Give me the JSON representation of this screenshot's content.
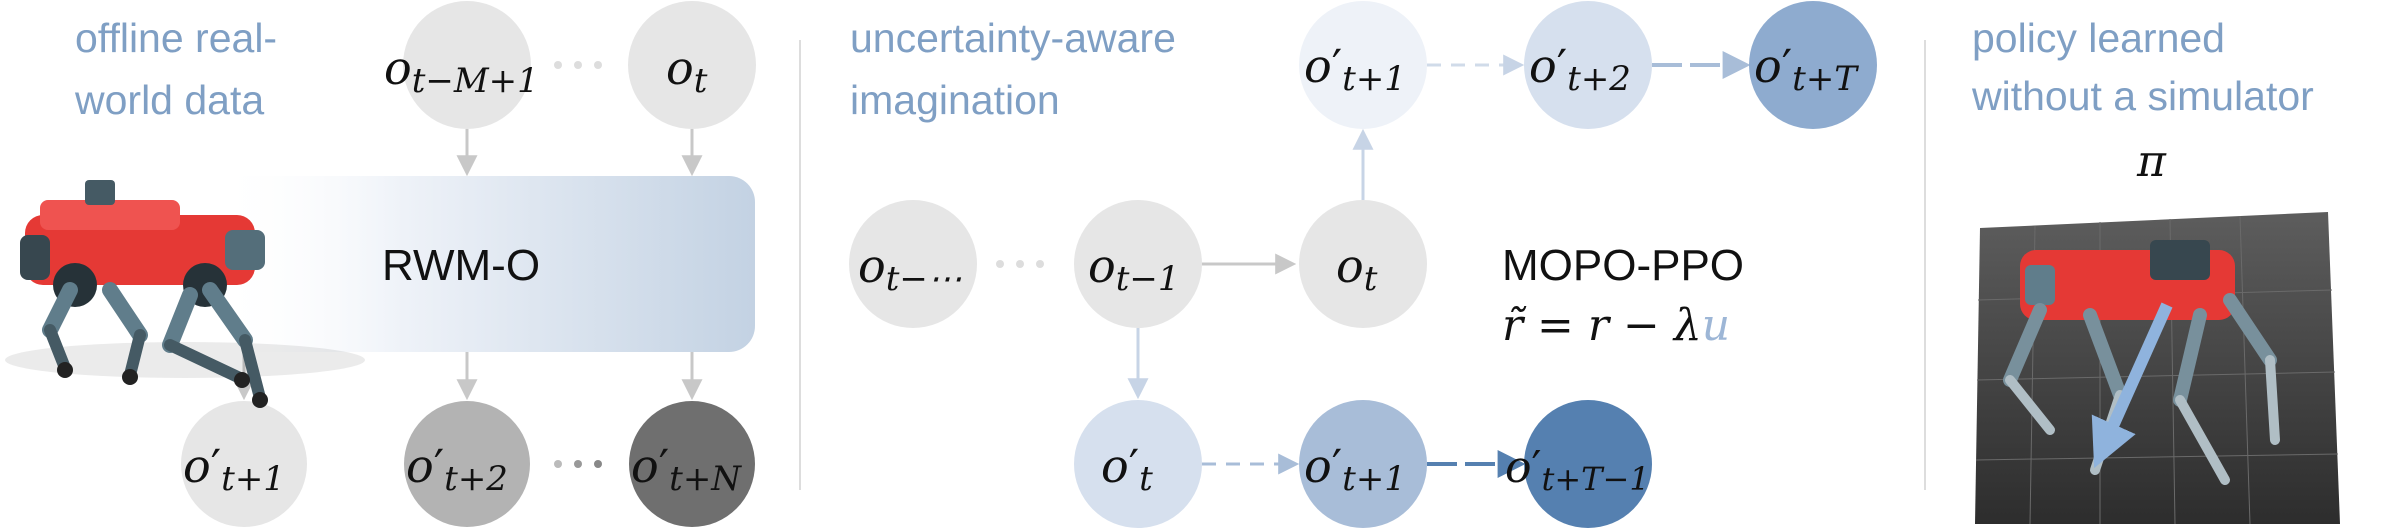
{
  "sections": {
    "left": {
      "caption_line1": "offline real-",
      "caption_line2": "world data",
      "model_label": "RWM-O"
    },
    "middle": {
      "caption_line1": "uncertainty-aware",
      "caption_line2": "imagination",
      "algo_label": "MOPO-PPO"
    },
    "right": {
      "caption_line1": "policy learned",
      "caption_line2": "without a simulator",
      "policy_symbol": "π"
    }
  },
  "nodes": {
    "left_inputs": [
      {
        "base": "o",
        "prime": "",
        "sub": "t−M+1"
      },
      {
        "base": "o",
        "prime": "",
        "sub": "t"
      }
    ],
    "left_outputs": [
      {
        "base": "o",
        "prime": "′",
        "sub": "t+1"
      },
      {
        "base": "o",
        "prime": "′",
        "sub": "t+2"
      },
      {
        "base": "o",
        "prime": "′",
        "sub": "t+N"
      }
    ],
    "mid_history": [
      {
        "base": "o",
        "prime": "",
        "sub": "t−⋯"
      },
      {
        "base": "o",
        "prime": "",
        "sub": "t−1"
      },
      {
        "base": "o",
        "prime": "",
        "sub": "t"
      }
    ],
    "mid_top": [
      {
        "base": "o",
        "prime": "′",
        "sub": "t+1"
      },
      {
        "base": "o",
        "prime": "′",
        "sub": "t+2"
      },
      {
        "base": "o",
        "prime": "′",
        "sub": "t+T"
      }
    ],
    "mid_bottom": [
      {
        "base": "o",
        "prime": "′",
        "sub": "t"
      },
      {
        "base": "o",
        "prime": "′",
        "sub": "t+1"
      },
      {
        "base": "o",
        "prime": "′",
        "sub": "t+T−1"
      }
    ]
  },
  "reward": {
    "lhs": "r̃",
    "eq": "=",
    "r": "r",
    "minus": "−",
    "lambda": "λ",
    "u": "u"
  },
  "colors": {
    "caption": "#7f9fc4",
    "node_light": "#e6e6e6",
    "node_mid": "#b3b3b3",
    "node_dark": "#6f6f6f",
    "uncertainty_1": "#d6e0ee",
    "uncertainty_2": "#a8bdd8",
    "uncertainty_3": "#8eabcf",
    "uncertainty_4": "#5580b0",
    "arrow_gray": "#c8c8c8",
    "robot_red": "#e53935"
  },
  "icons": [
    "robot-image",
    "floor-photo",
    "policy-arrow-icon"
  ]
}
